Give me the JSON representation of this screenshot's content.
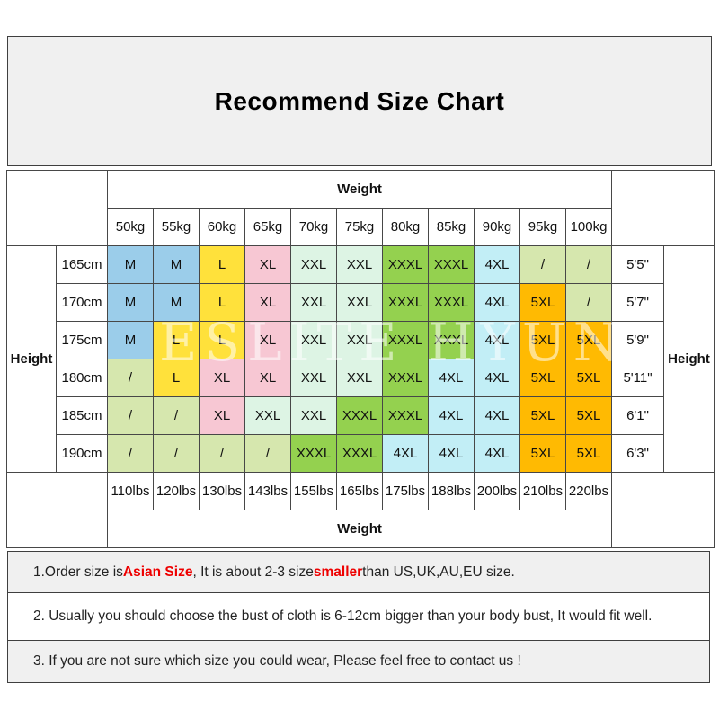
{
  "title": "Recommend Size Chart",
  "watermark": "ESLITE HYUN",
  "colors": {
    "blue": "#9bcdea",
    "yellow": "#ffe13b",
    "pink": "#f7c7d3",
    "mint": "#ddf4e4",
    "green": "#94d14f",
    "cyan": "#c2eef6",
    "orange": "#ffba02",
    "olive": "#d6e7ae"
  },
  "table": {
    "weight_label_top": "Weight",
    "weight_label_bottom": "Weight",
    "height_label_left": "Height",
    "height_label_right": "Height",
    "kg_headers": [
      "50kg",
      "55kg",
      "60kg",
      "65kg",
      "70kg",
      "75kg",
      "80kg",
      "85kg",
      "90kg",
      "95kg",
      "100kg"
    ],
    "lbs_headers": [
      "110lbs",
      "120lbs",
      "130lbs",
      "143lbs",
      "155lbs",
      "165lbs",
      "175lbs",
      "188lbs",
      "200lbs",
      "210lbs",
      "220lbs"
    ],
    "rows": [
      {
        "cm": "165cm",
        "ft": "5'5\"",
        "cells": [
          [
            "M",
            "blue"
          ],
          [
            "M",
            "blue"
          ],
          [
            "L",
            "yellow"
          ],
          [
            "XL",
            "pink"
          ],
          [
            "XXL",
            "mint"
          ],
          [
            "XXL",
            "mint"
          ],
          [
            "XXXL",
            "green"
          ],
          [
            "XXXL",
            "green"
          ],
          [
            "4XL",
            "cyan"
          ],
          [
            "/",
            "olive"
          ],
          [
            "/",
            "olive"
          ]
        ]
      },
      {
        "cm": "170cm",
        "ft": "5'7\"",
        "cells": [
          [
            "M",
            "blue"
          ],
          [
            "M",
            "blue"
          ],
          [
            "L",
            "yellow"
          ],
          [
            "XL",
            "pink"
          ],
          [
            "XXL",
            "mint"
          ],
          [
            "XXL",
            "mint"
          ],
          [
            "XXXL",
            "green"
          ],
          [
            "XXXL",
            "green"
          ],
          [
            "4XL",
            "cyan"
          ],
          [
            "5XL",
            "orange"
          ],
          [
            "/",
            "olive"
          ]
        ]
      },
      {
        "cm": "175cm",
        "ft": "5'9\"",
        "cells": [
          [
            "M",
            "blue"
          ],
          [
            "L",
            "yellow"
          ],
          [
            "L",
            "yellow"
          ],
          [
            "XL",
            "pink"
          ],
          [
            "XXL",
            "mint"
          ],
          [
            "XXL",
            "mint"
          ],
          [
            "XXXL",
            "green"
          ],
          [
            "XXXL",
            "green"
          ],
          [
            "4XL",
            "cyan"
          ],
          [
            "5XL",
            "orange"
          ],
          [
            "5XL",
            "orange"
          ]
        ]
      },
      {
        "cm": "180cm",
        "ft": "5'11\"",
        "cells": [
          [
            "/",
            "olive"
          ],
          [
            "L",
            "yellow"
          ],
          [
            "XL",
            "pink"
          ],
          [
            "XL",
            "pink"
          ],
          [
            "XXL",
            "mint"
          ],
          [
            "XXL",
            "mint"
          ],
          [
            "XXXL",
            "green"
          ],
          [
            "4XL",
            "cyan"
          ],
          [
            "4XL",
            "cyan"
          ],
          [
            "5XL",
            "orange"
          ],
          [
            "5XL",
            "orange"
          ]
        ]
      },
      {
        "cm": "185cm",
        "ft": "6'1\"",
        "cells": [
          [
            "/",
            "olive"
          ],
          [
            "/",
            "olive"
          ],
          [
            "XL",
            "pink"
          ],
          [
            "XXL",
            "mint"
          ],
          [
            "XXL",
            "mint"
          ],
          [
            "XXXL",
            "green"
          ],
          [
            "XXXL",
            "green"
          ],
          [
            "4XL",
            "cyan"
          ],
          [
            "4XL",
            "cyan"
          ],
          [
            "5XL",
            "orange"
          ],
          [
            "5XL",
            "orange"
          ]
        ]
      },
      {
        "cm": "190cm",
        "ft": "6'3\"",
        "cells": [
          [
            "/",
            "olive"
          ],
          [
            "/",
            "olive"
          ],
          [
            "/",
            "olive"
          ],
          [
            "/",
            "olive"
          ],
          [
            "XXXL",
            "green"
          ],
          [
            "XXXL",
            "green"
          ],
          [
            "4XL",
            "cyan"
          ],
          [
            "4XL",
            "cyan"
          ],
          [
            "4XL",
            "cyan"
          ],
          [
            "5XL",
            "orange"
          ],
          [
            "5XL",
            "orange"
          ]
        ]
      }
    ]
  },
  "notes": [
    {
      "shaded": true,
      "segments": [
        {
          "text": "1.Order size is "
        },
        {
          "text": "Asian Size",
          "red": true
        },
        {
          "text": ", It is about 2-3 size "
        },
        {
          "text": "smaller",
          "red": true
        },
        {
          "text": " than US,UK,AU,EU size."
        }
      ]
    },
    {
      "shaded": false,
      "segments": [
        {
          "text": "2. Usually you should choose the bust of cloth is 6-12cm bigger than your body bust, It would fit well."
        }
      ]
    },
    {
      "shaded": true,
      "segments": [
        {
          "text": "3. If you are not sure which size you could wear, Please feel free to contact us !"
        }
      ]
    }
  ]
}
